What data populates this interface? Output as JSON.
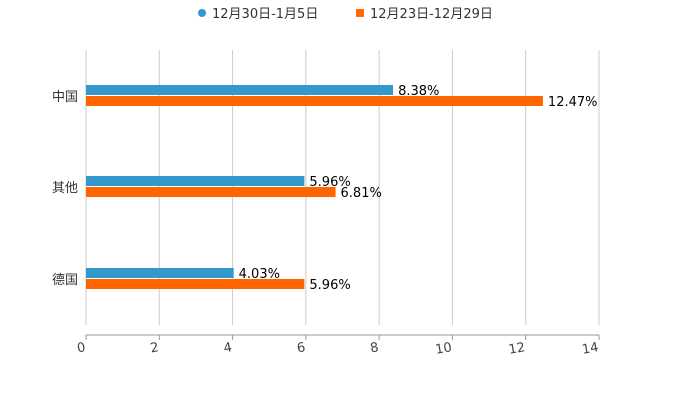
{
  "chart_data": {
    "type": "bar",
    "orientation": "horizontal",
    "categories": [
      "中国",
      "其他",
      "德国"
    ],
    "series": [
      {
        "name": "12月30日-1月5日",
        "color": "#3399cc",
        "values": [
          8.38,
          5.96,
          4.03
        ],
        "labels": [
          "8.38%",
          "5.96%",
          "4.03%"
        ]
      },
      {
        "name": "12月23日-12月29日",
        "color": "#ff6600",
        "values": [
          12.47,
          6.81,
          5.96
        ],
        "labels": [
          "12.47%",
          "6.81%",
          "5.96%"
        ]
      }
    ],
    "xlim": [
      0,
      14
    ],
    "xticks": [
      "0",
      "2",
      "4",
      "6",
      "8",
      "10",
      "12",
      "14"
    ],
    "grid": true,
    "legend": "top-center"
  }
}
